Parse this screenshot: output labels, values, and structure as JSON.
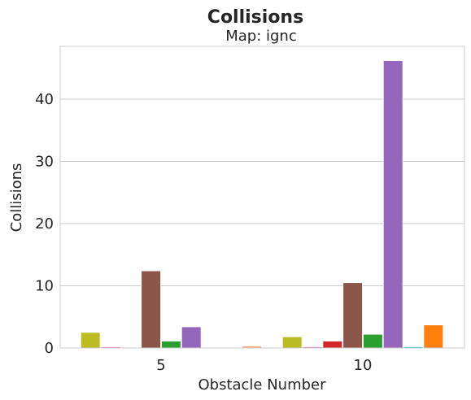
{
  "chart_data": {
    "type": "bar",
    "title": "Collisions",
    "subtitle": "Map: ignc",
    "xlabel": "Obstacle Number",
    "ylabel": "Collisions",
    "categories": [
      "5",
      "10"
    ],
    "ylim": [
      0,
      48.5
    ],
    "yticks": [
      0,
      10,
      20,
      30,
      40
    ],
    "grid": true,
    "legend": "none",
    "series": [
      {
        "color": "#bcbd22",
        "values": [
          2.5,
          1.8
        ]
      },
      {
        "color": "#e377c2",
        "values": [
          0.2,
          0.2
        ]
      },
      {
        "color": "#d62728",
        "values": [
          0.0,
          1.1
        ]
      },
      {
        "color": "#8c564b",
        "values": [
          12.4,
          10.5
        ]
      },
      {
        "color": "#2ca02c",
        "values": [
          1.1,
          2.2
        ]
      },
      {
        "color": "#9467bd",
        "values": [
          3.4,
          46.2
        ]
      },
      {
        "color": "#17becf",
        "values": [
          0.0,
          0.2
        ]
      },
      {
        "color": "#ff7f0e",
        "values": [
          0.0,
          3.7
        ]
      },
      {
        "color": "#f4a582",
        "values": [
          0.3,
          0.0
        ]
      }
    ]
  }
}
